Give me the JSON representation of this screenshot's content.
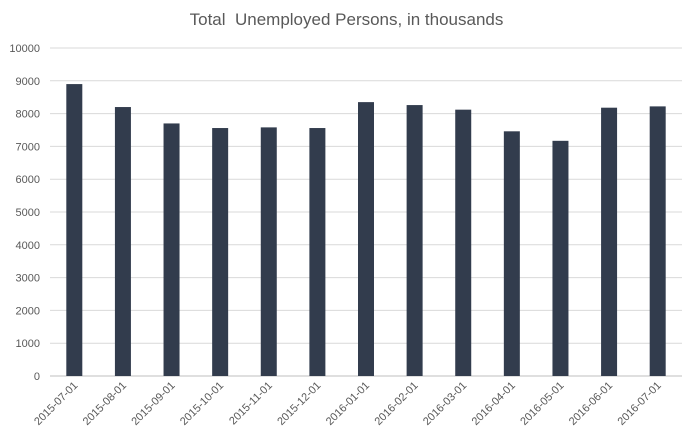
{
  "chart_data": {
    "type": "bar",
    "title": "Total  Unemployed Persons, in thousands",
    "xlabel": "",
    "ylabel": "",
    "categories": [
      "2015-07-01",
      "2015-08-01",
      "2015-09-01",
      "2015-10-01",
      "2015-11-01",
      "2015-12-01",
      "2016-01-01",
      "2016-02-01",
      "2016-03-01",
      "2016-04-01",
      "2016-05-01",
      "2016-06-01",
      "2016-07-01"
    ],
    "values": [
      8900,
      8200,
      7700,
      7560,
      7580,
      7560,
      8350,
      8260,
      8120,
      7460,
      7170,
      8180,
      8220
    ],
    "ylim": [
      0,
      10000
    ],
    "yticks": [
      0,
      1000,
      2000,
      3000,
      4000,
      5000,
      6000,
      7000,
      8000,
      9000,
      10000
    ],
    "grid": "horizontal",
    "legend": "none",
    "colors": {
      "bar": "#323c4d",
      "grid": "#d9d9d9",
      "text": "#595959"
    }
  }
}
